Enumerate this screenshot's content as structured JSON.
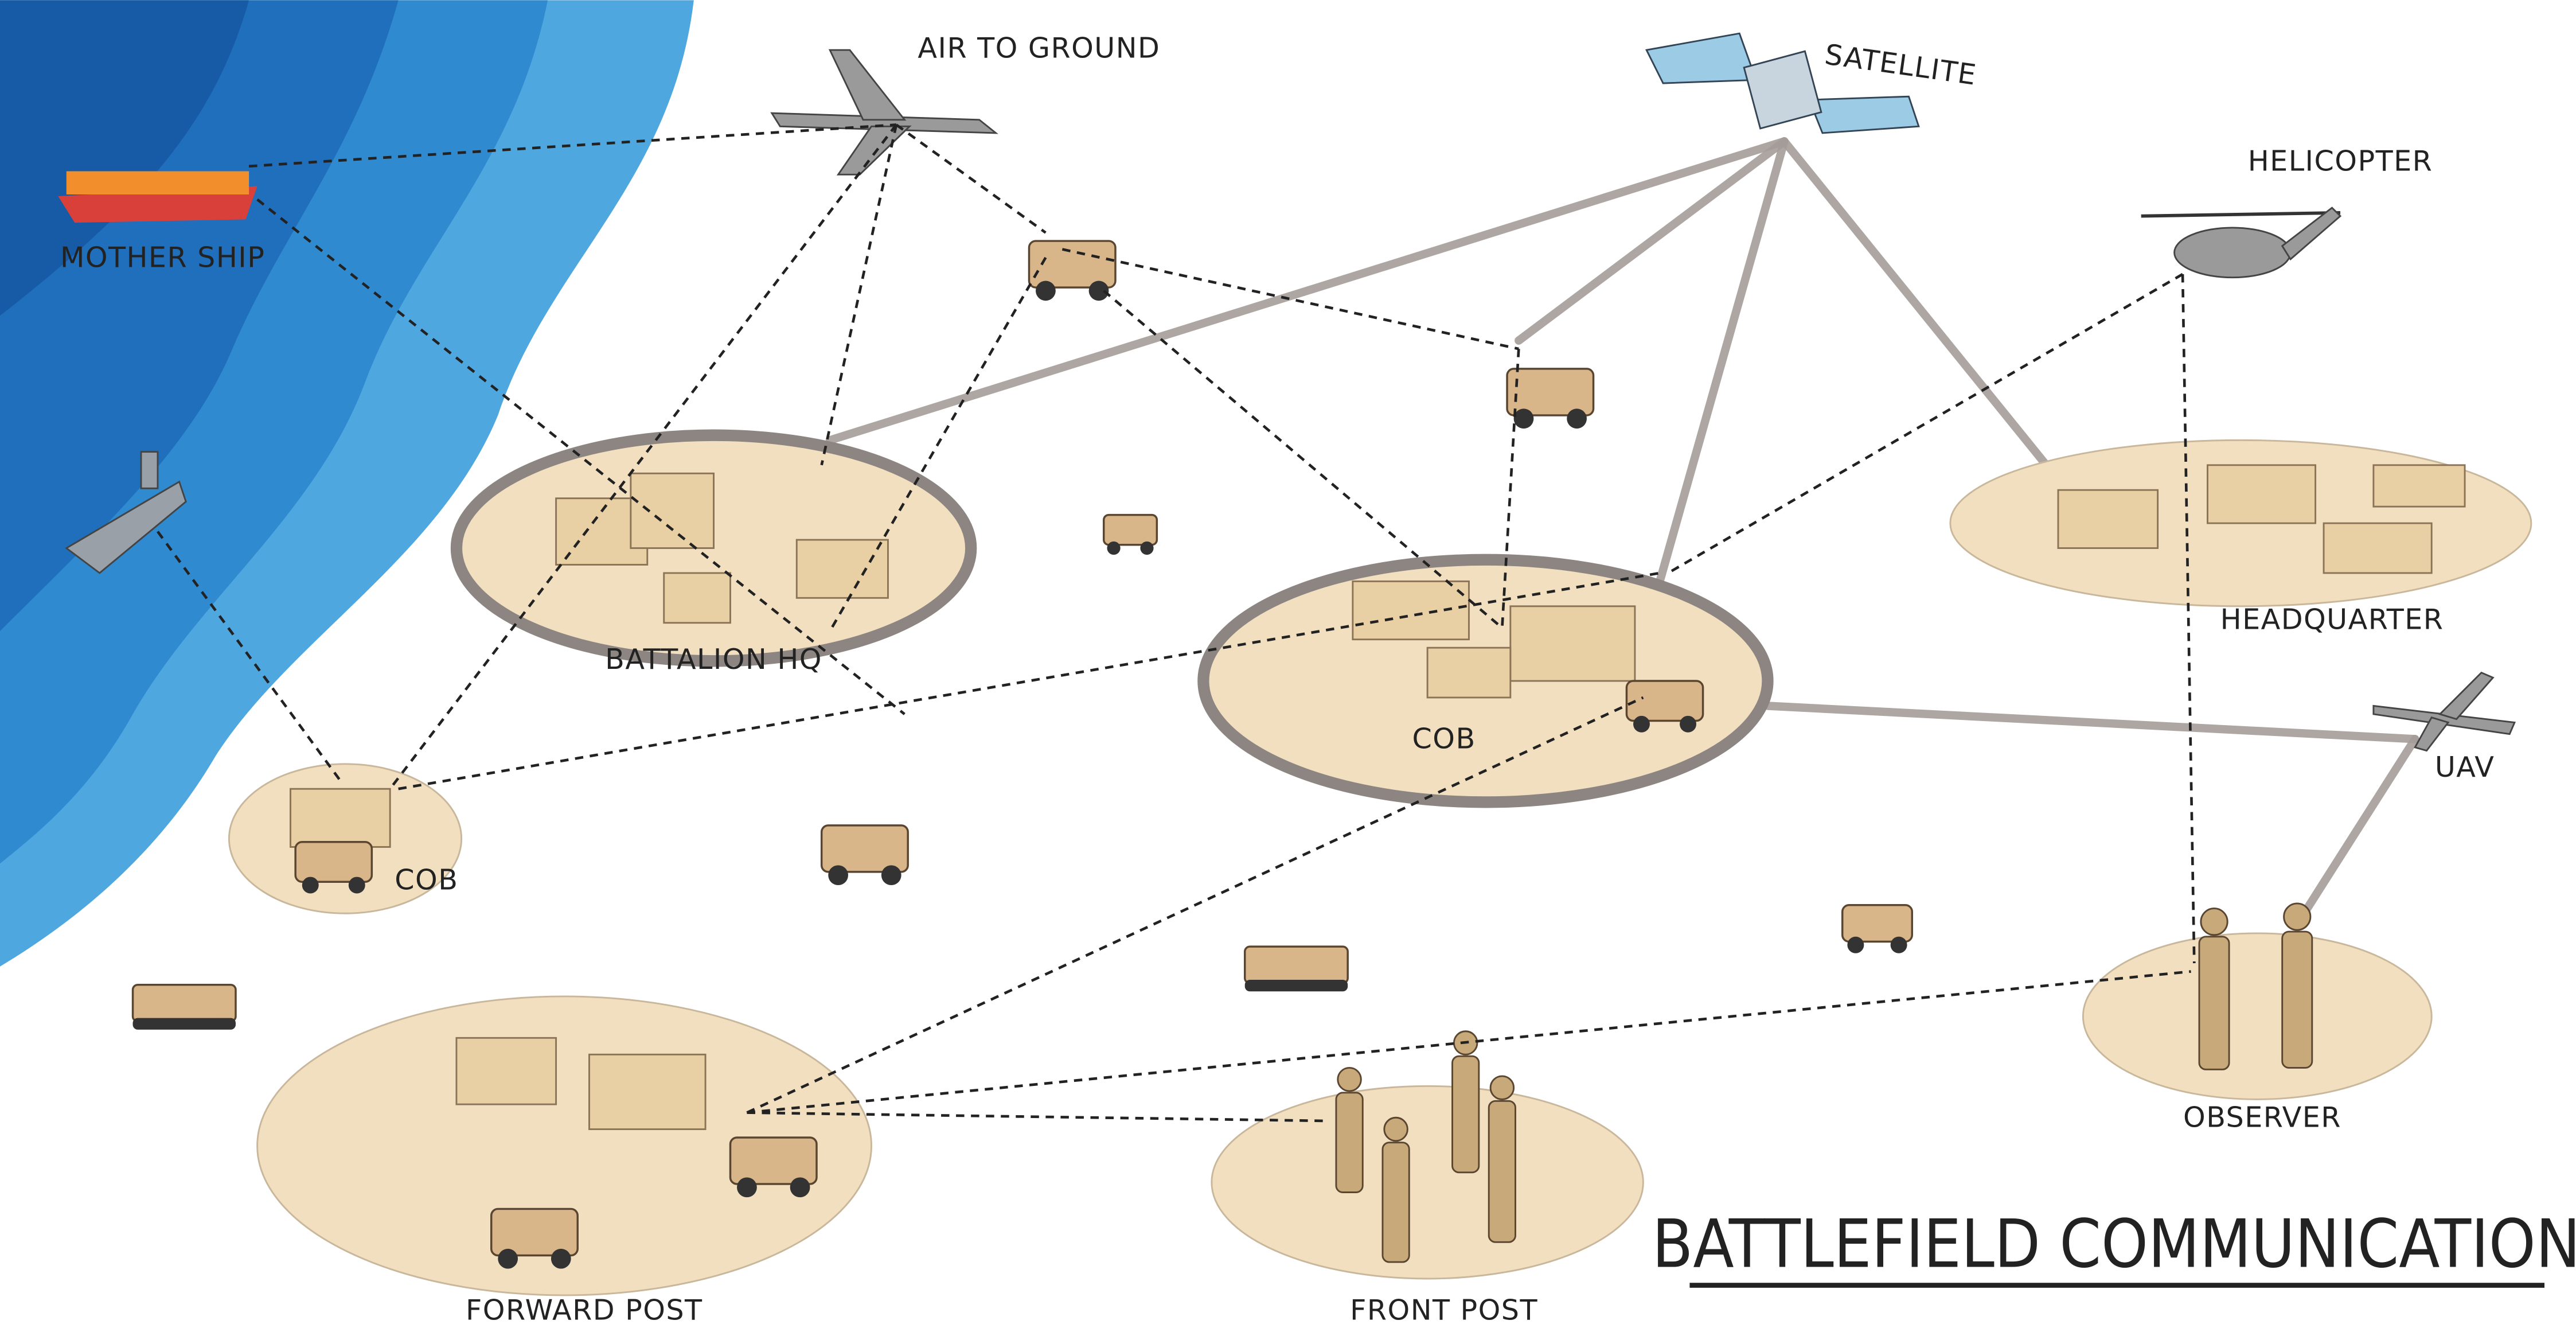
{
  "title": "BATTLEFIELD COMMUNICATION",
  "nodes": [
    {
      "label": "MOTHER SHIP"
    },
    {
      "label": "AIR TO GROUND"
    },
    {
      "label": "SATELLITE"
    },
    {
      "label": "HELICOPTER"
    },
    {
      "label": "BATTALION HQ"
    },
    {
      "label": "COB"
    },
    {
      "label": "HEADQUARTER"
    },
    {
      "label": "UAV"
    },
    {
      "label": "COB"
    },
    {
      "label": "FORWARD POST"
    },
    {
      "label": "FRONT POST"
    },
    {
      "label": "OBSERVER"
    }
  ]
}
